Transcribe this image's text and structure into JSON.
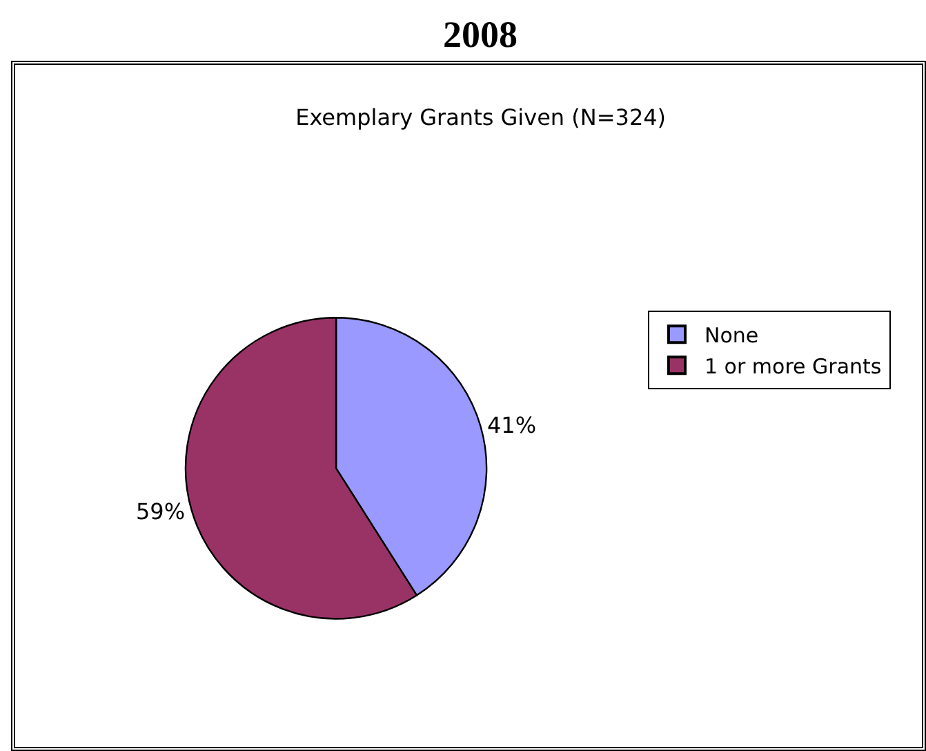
{
  "chart_data": {
    "type": "pie",
    "title": "2008",
    "subtitle": "Exemplary Grants Given (N=324)",
    "categories": [
      "None",
      "1 or more Grants"
    ],
    "values": [
      41,
      59
    ],
    "colors": [
      "#9999ff",
      "#993366"
    ],
    "value_labels": [
      "41%",
      "59%"
    ],
    "legend": "right"
  }
}
